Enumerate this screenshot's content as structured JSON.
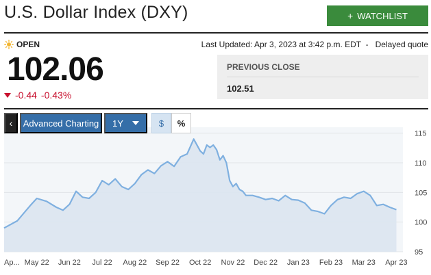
{
  "header": {
    "title": "U.S. Dollar Index (DXY)",
    "watchlist_label": "WATCHLIST",
    "watchlist_icon": "plus-icon"
  },
  "quote": {
    "status": "OPEN",
    "status_icon": "sun-icon",
    "last_updated": "Last Updated: Apr 3, 2023 at 3:42 p.m. EDT",
    "delay_note": "Delayed quote",
    "price": "102.06",
    "change": "-0.44",
    "change_pct": "-0.43%",
    "change_color": "#c8102e"
  },
  "previous_close": {
    "label": "PREVIOUS CLOSE",
    "value": "102.51"
  },
  "toolbar": {
    "back_icon": "chevron-left-icon",
    "advanced_charting_label": "Advanced Charting",
    "range_label": "1Y",
    "dollar_label": "$",
    "percent_label": "%"
  },
  "colors": {
    "accent_green": "#3a8b3c",
    "accent_blue": "#356ea8",
    "chart_line": "#7fb0e0",
    "chart_fill": "#dce6ef"
  },
  "chart_data": {
    "type": "area",
    "x_tick_labels": [
      "Ap...",
      "May 22",
      "Jun 22",
      "Jul 22",
      "Aug 22",
      "Sep 22",
      "Oct 22",
      "Nov 22",
      "Dec 22",
      "Jan 23",
      "Feb 23",
      "Mar 23",
      "Apr 23"
    ],
    "y_ticks": [
      95,
      100,
      105,
      110,
      115
    ],
    "ylim": [
      95,
      116
    ],
    "grid": true,
    "x": [
      0,
      0.4,
      0.8,
      1.0,
      1.3,
      1.6,
      1.8,
      2.0,
      2.2,
      2.4,
      2.6,
      2.8,
      3.0,
      3.2,
      3.4,
      3.6,
      3.8,
      4.0,
      4.2,
      4.4,
      4.6,
      4.8,
      5.0,
      5.2,
      5.4,
      5.6,
      5.8,
      6.0,
      6.1,
      6.2,
      6.3,
      6.4,
      6.5,
      6.6,
      6.7,
      6.8,
      6.9,
      7.0,
      7.1,
      7.2,
      7.3,
      7.4,
      7.6,
      7.8,
      8.0,
      8.2,
      8.4,
      8.6,
      8.8,
      9.0,
      9.2,
      9.4,
      9.6,
      9.8,
      10.0,
      10.2,
      10.4,
      10.6,
      10.8,
      11.0,
      11.2,
      11.4,
      11.6,
      11.8,
      12.0
    ],
    "values": [
      99.0,
      100.2,
      102.8,
      104.0,
      103.5,
      102.5,
      102.0,
      103.0,
      105.2,
      104.2,
      104.0,
      105.0,
      107.0,
      106.3,
      107.3,
      106.0,
      105.5,
      106.5,
      108.0,
      108.8,
      108.2,
      109.5,
      110.2,
      109.4,
      111.0,
      111.5,
      114.0,
      112.0,
      111.5,
      113.0,
      112.6,
      113.0,
      112.2,
      110.5,
      111.2,
      110.0,
      107.0,
      106.0,
      106.5,
      105.5,
      105.2,
      104.5,
      104.5,
      104.2,
      103.8,
      104.0,
      103.6,
      104.5,
      103.8,
      103.7,
      103.2,
      102.0,
      101.8,
      101.4,
      102.8,
      103.8,
      104.2,
      104.0,
      104.8,
      105.2,
      104.5,
      102.8,
      103.0,
      102.5,
      102.1
    ],
    "series": [
      {
        "values": "values"
      }
    ]
  }
}
